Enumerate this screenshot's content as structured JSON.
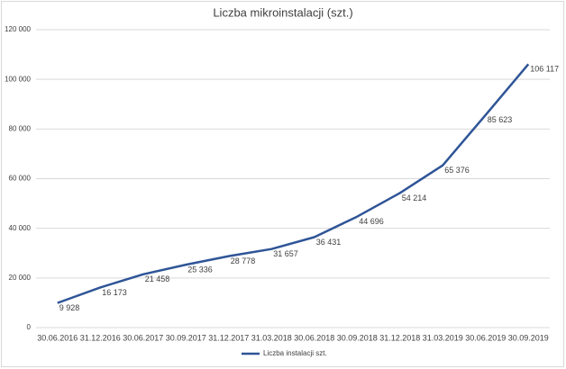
{
  "chart_data": {
    "type": "line",
    "title": "Liczba mikroinstalacji (szt.)",
    "categories": [
      "30.06.2016",
      "31.12.2016",
      "30.06.2017",
      "30.09.2017",
      "31.12.2017",
      "31.03.2018",
      "30.06.2018",
      "30.09.2018",
      "31.12.2018",
      "31.03.2019",
      "30.06.2019",
      "30.09.2019"
    ],
    "series": [
      {
        "name": "Liczba instalacji szt.",
        "color": "#2f5597",
        "values": [
          9928,
          16173,
          21458,
          25336,
          28778,
          31657,
          36431,
          44696,
          54214,
          65376,
          85623,
          106117
        ],
        "value_labels": [
          "9 928",
          "16 173",
          "21 458",
          "25 336",
          "28 778",
          "31 657",
          "36 431",
          "44 696",
          "54 214",
          "65 376",
          "85 623",
          "106 117"
        ]
      }
    ],
    "ylim": [
      0,
      120000
    ],
    "yticks": [
      0,
      {
        "value": 20000,
        "label": "20 000"
      },
      {
        "value": 40000,
        "label": "40 000"
      },
      {
        "value": 60000,
        "label": "60 000"
      },
      {
        "value": 80000,
        "label": "80 000"
      },
      {
        "value": 100000,
        "label": "100 000"
      },
      {
        "value": 120000,
        "label": "120 000"
      }
    ],
    "grid": true,
    "legend": "bottom"
  }
}
